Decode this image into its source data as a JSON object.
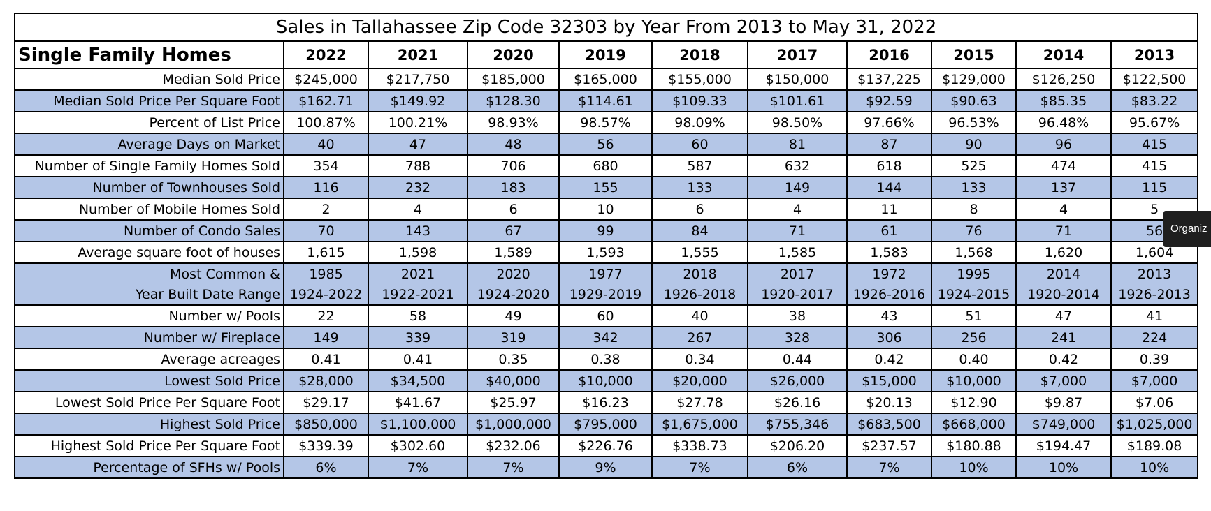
{
  "title": "Sales in Tallahassee Zip Code 32303 by Year From 2013 to May 31, 2022",
  "header_label": "Single Family Homes",
  "years": [
    "2022",
    "2021",
    "2020",
    "2019",
    "2018",
    "2017",
    "2016",
    "2015",
    "2014",
    "2013"
  ],
  "rows": [
    {
      "label": "Median Sold Price",
      "values": [
        "$245,000",
        "$217,750",
        "$185,000",
        "$165,000",
        "$155,000",
        "$150,000",
        "$137,225",
        "$129,000",
        "$126,250",
        "$122,500"
      ]
    },
    {
      "label": "Median Sold Price Per Square Foot",
      "values": [
        "$162.71",
        "$149.92",
        "$128.30",
        "$114.61",
        "$109.33",
        "$101.61",
        "$92.59",
        "$90.63",
        "$85.35",
        "$83.22"
      ]
    },
    {
      "label": "Percent of List Price",
      "values": [
        "100.87%",
        "100.21%",
        "98.93%",
        "98.57%",
        "98.09%",
        "98.50%",
        "97.66%",
        "96.53%",
        "96.48%",
        "95.67%"
      ]
    },
    {
      "label": "Average Days on Market",
      "values": [
        "40",
        "47",
        "48",
        "56",
        "60",
        "81",
        "87",
        "90",
        "96",
        "415"
      ]
    },
    {
      "label": "Number of Single Family Homes Sold",
      "values": [
        "354",
        "788",
        "706",
        "680",
        "587",
        "632",
        "618",
        "525",
        "474",
        "415"
      ]
    },
    {
      "label": "Number of Townhouses Sold",
      "values": [
        "116",
        "232",
        "183",
        "155",
        "133",
        "149",
        "144",
        "133",
        "137",
        "115"
      ]
    },
    {
      "label": "Number of Mobile Homes Sold",
      "values": [
        "2",
        "4",
        "6",
        "10",
        "6",
        "4",
        "11",
        "8",
        "4",
        "5"
      ]
    },
    {
      "label": "Number of Condo Sales",
      "values": [
        "70",
        "143",
        "67",
        "99",
        "84",
        "71",
        "61",
        "76",
        "71",
        "56"
      ]
    },
    {
      "label": "Average square foot of houses",
      "values": [
        "1,615",
        "1,598",
        "1,589",
        "1,593",
        "1,555",
        "1,585",
        "1,583",
        "1,568",
        "1,620",
        "1,604"
      ]
    }
  ],
  "year_built": {
    "label_line1": "Most Common &",
    "label_line2": "Year Built Date Range",
    "common": [
      "1985",
      "2021",
      "2020",
      "1977",
      "2018",
      "2017",
      "1972",
      "1995",
      "2014",
      "2013"
    ],
    "range": [
      "1924-2022",
      "1922-2021",
      "1924-2020",
      "1929-2019",
      "1926-2018",
      "1920-2017",
      "1926-2016",
      "1924-2015",
      "1920-2014",
      "1926-2013"
    ]
  },
  "rows2": [
    {
      "label": "Number w/ Pools",
      "values": [
        "22",
        "58",
        "49",
        "60",
        "40",
        "38",
        "43",
        "51",
        "47",
        "41"
      ]
    },
    {
      "label": "Number w/ Fireplace",
      "values": [
        "149",
        "339",
        "319",
        "342",
        "267",
        "328",
        "306",
        "256",
        "241",
        "224"
      ]
    },
    {
      "label": "Average acreages",
      "values": [
        "0.41",
        "0.41",
        "0.35",
        "0.38",
        "0.34",
        "0.44",
        "0.42",
        "0.40",
        "0.42",
        "0.39"
      ]
    },
    {
      "label": "Lowest Sold Price",
      "values": [
        "$28,000",
        "$34,500",
        "$40,000",
        "$10,000",
        "$20,000",
        "$26,000",
        "$15,000",
        "$10,000",
        "$7,000",
        "$7,000"
      ]
    },
    {
      "label": "Lowest Sold Price Per Square Foot",
      "values": [
        "$29.17",
        "$41.67",
        "$25.97",
        "$16.23",
        "$27.78",
        "$26.16",
        "$20.13",
        "$12.90",
        "$9.87",
        "$7.06"
      ]
    },
    {
      "label": "Highest Sold Price",
      "values": [
        "$850,000",
        "$1,100,000",
        "$1,000,000",
        "$795,000",
        "$1,675,000",
        "$755,346",
        "$683,500",
        "$668,000",
        "$749,000",
        "$1,025,000"
      ]
    },
    {
      "label": "Highest Sold Price Per Square Foot",
      "values": [
        "$339.39",
        "$302.60",
        "$232.06",
        "$226.76",
        "$338.73",
        "$206.20",
        "$237.57",
        "$180.88",
        "$194.47",
        "$189.08"
      ]
    },
    {
      "label": "Percentage of SFHs w/ Pools",
      "values": [
        "6%",
        "7%",
        "7%",
        "9%",
        "7%",
        "6%",
        "7%",
        "10%",
        "10%",
        "10%"
      ]
    }
  ],
  "tooltip": "Organiz",
  "colors": {
    "shade": "#b4c6e7",
    "border": "#000000",
    "tooltip_bg": "#1f1f1f"
  }
}
